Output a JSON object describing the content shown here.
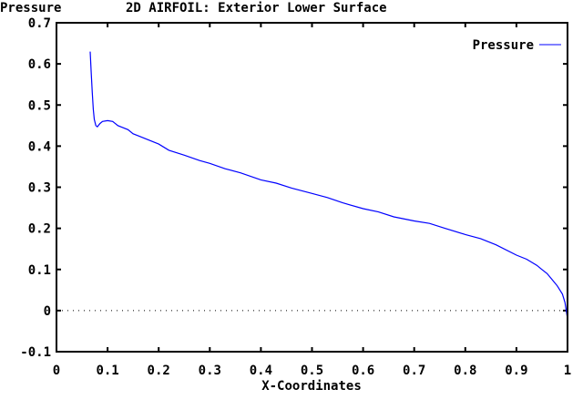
{
  "chart_data": {
    "type": "line",
    "title": "2D AIRFOIL: Exterior Lower Surface",
    "ylabel": "Pressure",
    "xlabel": "X-Coordinates",
    "xlim": [
      0,
      1
    ],
    "ylim": [
      -0.1,
      0.7
    ],
    "xticks": [
      "0",
      "0.1",
      "0.2",
      "0.3",
      "0.4",
      "0.5",
      "0.6",
      "0.7",
      "0.8",
      "0.9",
      "1"
    ],
    "yticks": [
      "-0.1",
      "0",
      "0.1",
      "0.2",
      "0.3",
      "0.4",
      "0.5",
      "0.6",
      "0.7"
    ],
    "grid": false,
    "zero_line": true,
    "legend_position": "top-right",
    "series": [
      {
        "name": "Pressure",
        "color": "#0000ff",
        "x": [
          0.066,
          0.068,
          0.07,
          0.072,
          0.074,
          0.077,
          0.08,
          0.085,
          0.09,
          0.1,
          0.11,
          0.12,
          0.13,
          0.14,
          0.15,
          0.16,
          0.18,
          0.2,
          0.22,
          0.25,
          0.28,
          0.3,
          0.33,
          0.36,
          0.4,
          0.43,
          0.46,
          0.5,
          0.53,
          0.56,
          0.6,
          0.63,
          0.66,
          0.7,
          0.73,
          0.76,
          0.8,
          0.83,
          0.86,
          0.9,
          0.92,
          0.94,
          0.95,
          0.96,
          0.97,
          0.98,
          0.99,
          0.995,
          1.0
        ],
        "y": [
          0.63,
          0.58,
          0.53,
          0.49,
          0.465,
          0.45,
          0.447,
          0.455,
          0.46,
          0.462,
          0.46,
          0.45,
          0.445,
          0.44,
          0.43,
          0.425,
          0.415,
          0.405,
          0.39,
          0.378,
          0.365,
          0.358,
          0.345,
          0.335,
          0.318,
          0.31,
          0.298,
          0.285,
          0.275,
          0.262,
          0.248,
          0.24,
          0.228,
          0.218,
          0.212,
          0.2,
          0.185,
          0.175,
          0.16,
          0.135,
          0.125,
          0.11,
          0.1,
          0.09,
          0.075,
          0.06,
          0.04,
          0.02,
          -0.02
        ]
      }
    ]
  }
}
